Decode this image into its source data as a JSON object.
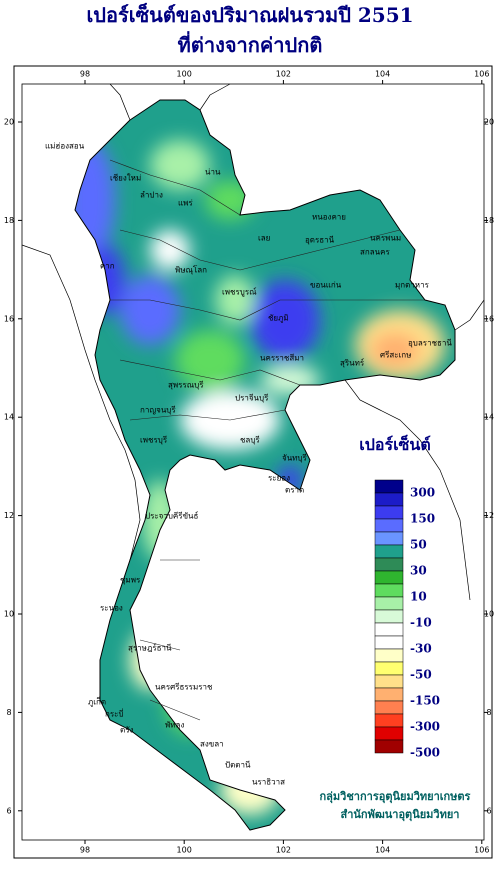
{
  "header": {
    "title_line1": "เปอร์เซ็นต์ของปริมาณฝนรวมปี  2551",
    "title_line2": "ที่ต่างจากค่าปกติ"
  },
  "map": {
    "lon_ticks": [
      98,
      100,
      102,
      104,
      106
    ],
    "lat_ticks": [
      6,
      8,
      10,
      12,
      14,
      16,
      18,
      20
    ],
    "provinces": [
      "แม่ฮ่องสอน",
      "เชียงใหม่",
      "น่าน",
      "ลำปาง",
      "แพร่",
      "ตาก",
      "พิษณุโลก",
      "เพชรบูรณ์",
      "เลย",
      "หนองคาย",
      "อุดรธานี",
      "นครพนม",
      "สกลนคร",
      "ขอนแก่น",
      "มุกดาหาร",
      "ชัยภูมิ",
      "อุบลราชธานี",
      "สุรินทร์",
      "ศรีสะเกษ",
      "นครราชสีมา",
      "กาญจนบุรี",
      "สุพรรณบุรี",
      "ปราจีนบุรี",
      "ชลบุรี",
      "ระยอง",
      "จันทบุรี",
      "ตราด",
      "เพชรบุรี",
      "ประจวบคีรีขันธ์",
      "ชุมพร",
      "ระนอง",
      "สุราษฎร์ธานี",
      "นครศรีธรรมราช",
      "ภูเก็ต",
      "กระบี่",
      "ตรัง",
      "พัทลุง",
      "สงขลา",
      "ปัตตานี",
      "นราธิวาส"
    ]
  },
  "legend": {
    "title": "เปอร์เซ็นต์",
    "labels": [
      "300",
      "150",
      "50",
      "30",
      "10",
      "-10",
      "-30",
      "-50",
      "-150",
      "-300",
      "-500"
    ],
    "colors": [
      "#00008b",
      "#1c1cc8",
      "#3c3cf0",
      "#5a6cff",
      "#6a94ff",
      "#1fa08c",
      "#2e8b57",
      "#2fb52f",
      "#5fdc5f",
      "#a8f0a8",
      "#d8fad8",
      "#ffffff",
      "#ffffff",
      "#ffffc8",
      "#ffff70",
      "#ffe08a",
      "#ffb070",
      "#ff8050",
      "#ff4020",
      "#e00000",
      "#a00000"
    ]
  },
  "credits": {
    "line1": "กลุ่มวิชาการอุตุนิยมวิทยาเกษตร",
    "line2": "สำนักพัฒนาอุตุนิยมวิทยา"
  }
}
